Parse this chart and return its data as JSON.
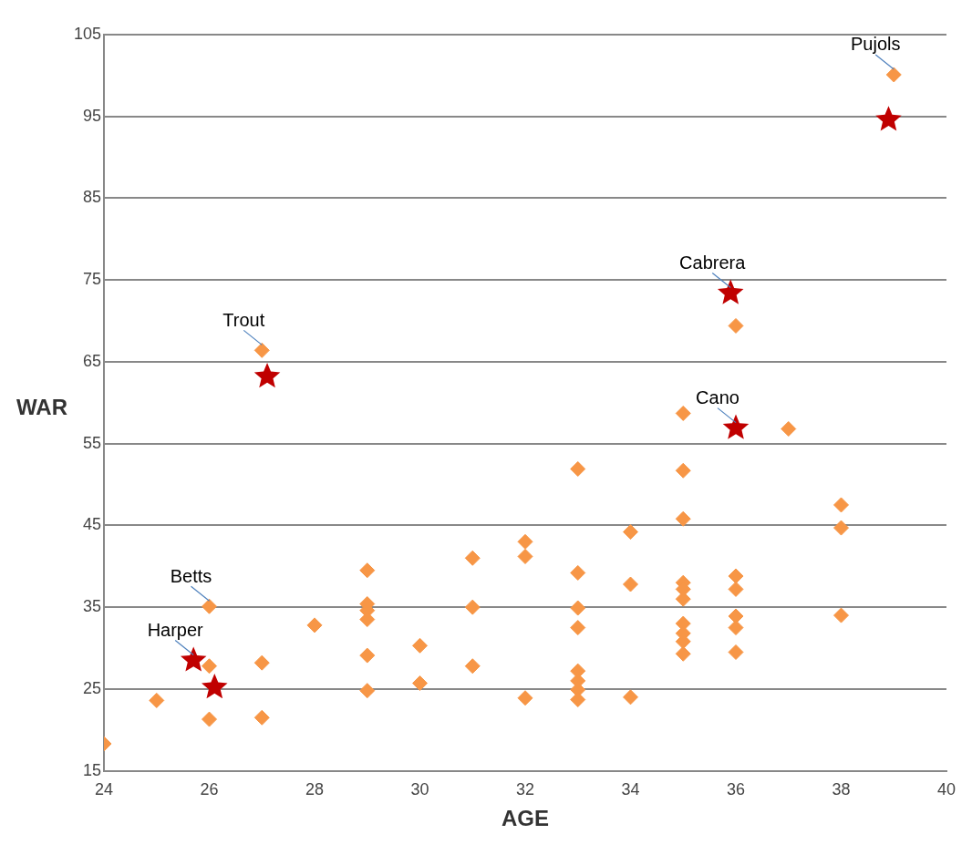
{
  "chart_data": {
    "type": "scatter",
    "xlabel": "AGE",
    "ylabel": "WAR",
    "xlim": [
      24,
      40
    ],
    "xticks": [
      24,
      26,
      28,
      30,
      32,
      34,
      36,
      38,
      40
    ],
    "ylim": [
      15,
      105
    ],
    "yticks": [
      15,
      25,
      35,
      45,
      55,
      65,
      75,
      85,
      95,
      105
    ],
    "grid": "y",
    "legend": false,
    "series": [
      {
        "color": "#f79646",
        "marker": "diamond",
        "x": [
          24,
          25,
          26,
          26,
          26,
          27,
          27,
          27,
          28,
          29,
          29,
          29,
          29,
          29,
          29,
          30,
          30,
          31,
          31,
          31,
          32,
          32,
          32,
          33,
          33,
          33,
          33,
          33,
          33,
          33,
          33,
          34,
          34,
          34,
          35,
          35,
          35,
          35,
          35,
          35,
          35,
          35,
          35,
          35,
          36,
          36,
          36,
          36,
          36,
          36,
          37,
          38,
          38,
          38,
          39
        ],
        "values": [
          18.3,
          23.6,
          21.3,
          35.1,
          27.8,
          21.5,
          28.2,
          66.4,
          32.8,
          39.5,
          35.4,
          34.6,
          33.5,
          29.1,
          24.8,
          30.3,
          25.7,
          41,
          35,
          27.8,
          43,
          41.2,
          23.9,
          51.9,
          39.2,
          34.9,
          32.5,
          27.2,
          26,
          24.9,
          23.7,
          44.2,
          37.8,
          24,
          58.7,
          51.7,
          45.8,
          38,
          37.2,
          36,
          33,
          31.8,
          30.8,
          29.3,
          69.4,
          38.8,
          37.2,
          33.9,
          32.5,
          29.5,
          56.8,
          47.5,
          44.7,
          34,
          100.1
        ]
      },
      {
        "color": "#c00000",
        "marker": "star",
        "x": [
          25.7,
          26.1,
          27.1,
          35.9,
          36,
          38.9
        ],
        "values": [
          28.5,
          25.2,
          63.2,
          73.4,
          56.9,
          94.6
        ]
      }
    ],
    "annotations": [
      {
        "text": "Pujols",
        "x": 39,
        "y": 100.1
      },
      {
        "text": "Trout",
        "x": 27,
        "y": 66.4
      },
      {
        "text": "Cabrera",
        "x": 35.9,
        "y": 73.4
      },
      {
        "text": "Cano",
        "x": 36,
        "y": 56.9
      },
      {
        "text": "Betts",
        "x": 26,
        "y": 35.1
      },
      {
        "text": "Harper",
        "x": 25.7,
        "y": 28.5
      }
    ]
  }
}
